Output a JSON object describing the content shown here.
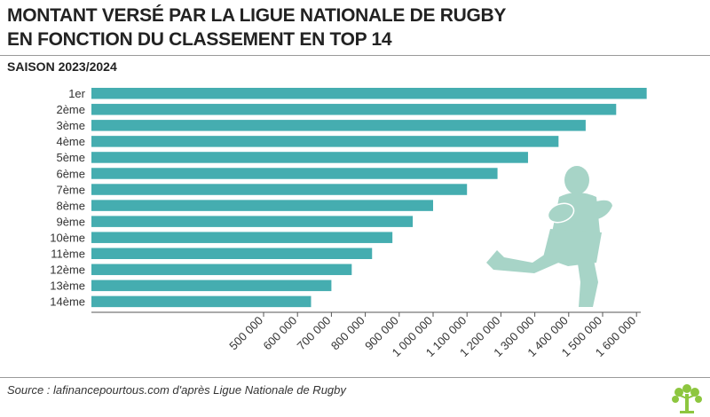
{
  "header": {
    "title_line1": "MONTANT VERSÉ PAR LA LIGUE NATIONALE DE RUGBY",
    "title_line2": "EN FONCTION DU CLASSEMENT EN TOP 14",
    "subtitle": "SAISON 2023/2024"
  },
  "footer": {
    "source": "Source : lafinancepourtous.com d'après Ligue Nationale de Rugby"
  },
  "colors": {
    "bar": "#45adb0",
    "illustration": "#a7d4c7",
    "logo": "#8dc63f"
  },
  "chart_data": {
    "type": "bar",
    "orientation": "horizontal",
    "categories": [
      "1er",
      "2ème",
      "3ème",
      "4ème",
      "5ème",
      "6ème",
      "7ème",
      "8ème",
      "9ème",
      "10ème",
      "11ème",
      "12ème",
      "13ème",
      "14ème"
    ],
    "values": [
      1630000,
      1540000,
      1450000,
      1370000,
      1280000,
      1190000,
      1100000,
      1000000,
      940000,
      880000,
      820000,
      760000,
      700000,
      640000
    ],
    "ticks": [
      500000,
      600000,
      700000,
      800000,
      900000,
      1000000,
      1100000,
      1200000,
      1300000,
      1400000,
      1500000,
      1600000
    ],
    "tick_labels": [
      "500 000",
      "600 000",
      "700 000",
      "800 000",
      "900 000",
      "1 000 000",
      "1 100 000",
      "1 200 000",
      "1 300 000",
      "1 400 000",
      "1 500 000",
      "1 600 000"
    ],
    "xlim": [
      400000,
      1650000
    ],
    "grid": false
  }
}
